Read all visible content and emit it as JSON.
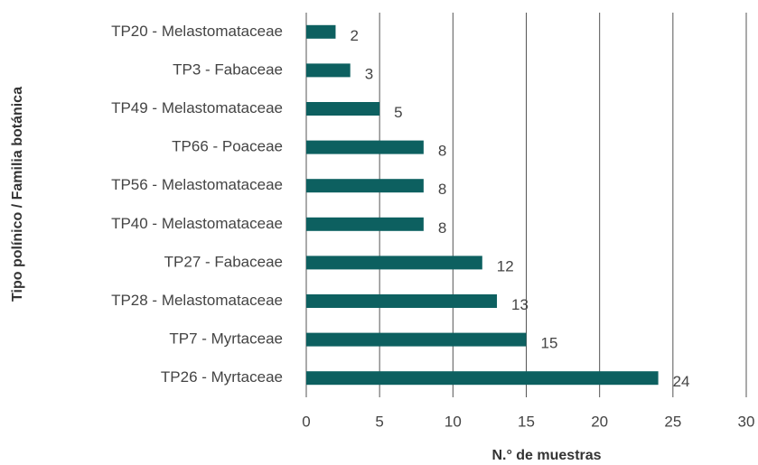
{
  "chart_data": {
    "type": "bar",
    "orientation": "horizontal",
    "xlabel": "N.° de muestras",
    "ylabel": "Tipo polínico / Familia botánica",
    "categories": [
      "TP20 - Melastomataceae",
      "TP3 - Fabaceae",
      "TP49 - Melastomataceae",
      "TP66 - Poaceae",
      "TP56 - Melastomataceae",
      "TP40 - Melastomataceae",
      "TP27 - Fabaceae",
      "TP28 - Melastomataceae",
      "TP7 - Myrtaceae",
      "TP26 - Myrtaceae"
    ],
    "values": [
      2,
      3,
      5,
      8,
      8,
      8,
      12,
      13,
      15,
      24
    ],
    "color": "#0d6060",
    "xlim": [
      0,
      30
    ],
    "xticks": [
      0,
      5,
      10,
      15,
      20,
      25,
      30
    ],
    "grid": true
  }
}
